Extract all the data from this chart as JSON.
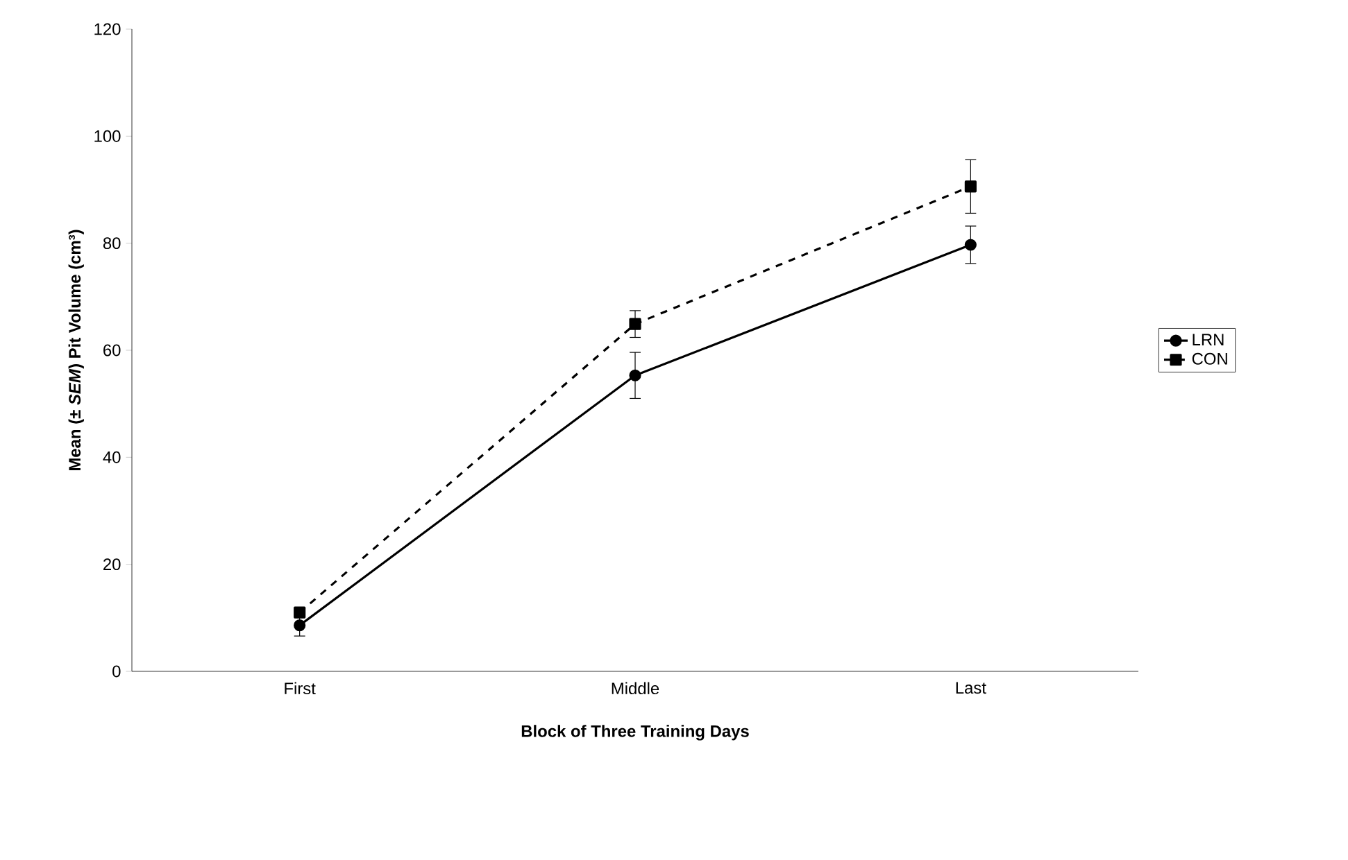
{
  "chart_data": {
    "type": "line",
    "xlabel": "Block of Three Training Days",
    "ylabel": "Mean (± *SEM*) Pit Volume (cm³)",
    "categories": [
      "First",
      "Middle",
      "Last"
    ],
    "series": [
      {
        "name": "LRN",
        "color": "#000000",
        "values": [
          8.6,
          55.3,
          79.7
        ],
        "errors": [
          2,
          4.3,
          3.5
        ],
        "marker": "circle",
        "line_style": "solid"
      },
      {
        "name": "CON",
        "color": "#000000",
        "values": [
          11,
          64.9,
          90.6
        ],
        "errors": [
          null,
          2.5,
          5
        ],
        "marker": "square",
        "line_style": "dashed"
      }
    ],
    "ylim": [
      0,
      120
    ],
    "yticks": [
      0,
      20,
      40,
      60,
      80,
      100,
      120
    ],
    "grid": false,
    "legend": "right"
  }
}
